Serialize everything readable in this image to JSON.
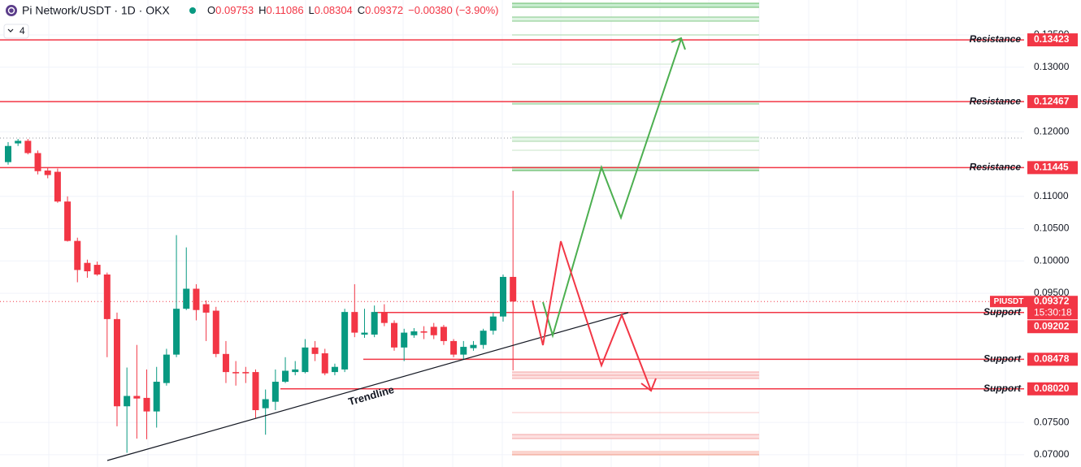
{
  "header": {
    "title": "Pi Network/USDT · 1D · OKX",
    "quote": [
      {
        "label": "O",
        "value": "0.09753"
      },
      {
        "label": "H",
        "value": "0.11086"
      },
      {
        "label": "L",
        "value": "0.08304"
      },
      {
        "label": "C",
        "value": "0.09372"
      }
    ],
    "change": "−0.00380 (−3.90%)",
    "indicators": "4"
  },
  "chart_data": {
    "type": "candlestick",
    "categories": [
      null,
      null,
      null,
      null,
      null,
      null,
      null,
      null,
      null,
      null,
      null,
      null,
      null,
      null,
      null,
      null,
      null,
      null,
      null,
      null,
      null,
      null,
      null,
      null,
      null,
      null,
      null,
      null,
      null,
      null,
      null,
      null,
      null,
      null,
      null,
      null,
      null,
      null,
      null,
      null,
      null,
      null,
      null,
      null,
      null,
      null,
      null,
      null,
      null,
      null,
      null,
      null
    ],
    "series": [
      {
        "name": "PIUSDT",
        "up_color": "#089981",
        "down_color": "#f23645",
        "open": [
          0.1153,
          0.1182,
          0.1186,
          0.1167,
          0.114,
          0.1138,
          0.1092,
          0.1031,
          0.0997,
          0.0994,
          0.0979,
          0.091,
          0.0775,
          0.0791,
          0.0788,
          0.0767,
          0.0811,
          0.0855,
          0.0926,
          0.0957,
          0.0933,
          0.0923,
          0.0856,
          0.0828,
          0.0828,
          0.0828,
          0.0772,
          0.0782,
          0.0813,
          0.0828,
          0.0828,
          0.0866,
          0.0857,
          0.0828,
          0.0832,
          0.0921,
          0.0886,
          0.0886,
          0.0921,
          0.0904,
          0.0866,
          0.0885,
          0.0891,
          0.0898,
          0.0898,
          0.0876,
          0.0855,
          0.0865,
          0.087,
          0.0892,
          0.0914,
          0.09753
        ],
        "high": [
          0.1184,
          0.1189,
          0.1189,
          0.1171,
          0.1144,
          0.1143,
          0.11,
          0.1036,
          0.1002,
          0.0999,
          0.0982,
          0.092,
          0.0835,
          0.087,
          0.0832,
          0.0836,
          0.0864,
          0.104,
          0.1021,
          0.0964,
          0.0939,
          0.0929,
          0.0876,
          0.0845,
          0.0836,
          0.0832,
          0.0801,
          0.0832,
          0.0851,
          0.0845,
          0.0879,
          0.0876,
          0.0864,
          0.0841,
          0.0926,
          0.0964,
          0.0926,
          0.0931,
          0.0933,
          0.0908,
          0.0895,
          0.0896,
          0.0899,
          0.0904,
          0.0901,
          0.0879,
          0.0876,
          0.0876,
          0.0895,
          0.092,
          0.0979,
          0.11086
        ],
        "low": [
          0.1149,
          0.1178,
          0.1165,
          0.1134,
          0.1128,
          0.109,
          0.103,
          0.0967,
          0.0974,
          0.0977,
          0.0851,
          0.0744,
          0.0703,
          0.0725,
          0.0724,
          0.0742,
          0.0807,
          0.0851,
          0.0924,
          0.0908,
          0.0876,
          0.0851,
          0.0811,
          0.0807,
          0.0811,
          0.0757,
          0.0731,
          0.0769,
          0.0811,
          0.0823,
          0.0826,
          0.0845,
          0.0823,
          0.0823,
          0.0828,
          0.0882,
          0.0881,
          0.0882,
          0.0899,
          0.0861,
          0.0845,
          0.0881,
          0.0879,
          0.0879,
          0.087,
          0.0851,
          0.0848,
          0.0861,
          0.0864,
          0.0886,
          0.0906,
          0.08304
        ],
        "close": [
          0.1178,
          0.1186,
          0.1167,
          0.1139,
          0.1133,
          0.1092,
          0.1031,
          0.0986,
          0.0984,
          0.0979,
          0.091,
          0.0775,
          0.0791,
          0.0787,
          0.0767,
          0.0813,
          0.0855,
          0.0926,
          0.0957,
          0.0924,
          0.092,
          0.0856,
          0.0828,
          0.0826,
          0.0826,
          0.0769,
          0.0786,
          0.0813,
          0.083,
          0.0832,
          0.0866,
          0.0856,
          0.0826,
          0.0836,
          0.0921,
          0.0889,
          0.0889,
          0.0921,
          0.0904,
          0.0866,
          0.0889,
          0.0891,
          0.0889,
          0.0885,
          0.0876,
          0.0855,
          0.0867,
          0.087,
          0.0892,
          0.0914,
          0.09753,
          0.09372
        ]
      }
    ],
    "ylim": [
      0.0681,
      0.1404
    ],
    "yticks": [
      {
        "value": 0.07,
        "label": "0.07000"
      },
      {
        "value": 0.075,
        "label": "0.07500"
      },
      {
        "value": 0.095,
        "label": "0.09500"
      },
      {
        "value": 0.1,
        "label": "0.10000"
      },
      {
        "value": 0.105,
        "label": "0.10500"
      },
      {
        "value": 0.11,
        "label": "0.11000"
      },
      {
        "value": 0.12,
        "label": "0.12000"
      },
      {
        "value": 0.13,
        "label": "0.13000"
      },
      {
        "value": 0.135,
        "label": "0.13500"
      }
    ],
    "grid": true,
    "levels": [
      {
        "name": "Resistance",
        "value": 0.13423
      },
      {
        "name": "Resistance",
        "value": 0.12467
      },
      {
        "name": "Resistance",
        "value": 0.11445
      },
      {
        "name": "Support",
        "value": 0.09202
      },
      {
        "name": "Support",
        "value": 0.08478
      },
      {
        "name": "Support",
        "value": 0.0802,
        "value_label": "0.08020"
      }
    ],
    "level_color": "#f23645",
    "last_price": {
      "name": "PIUSDT",
      "value": 0.09372,
      "countdown": "15:30:18"
    },
    "annotation": "Trendline"
  }
}
